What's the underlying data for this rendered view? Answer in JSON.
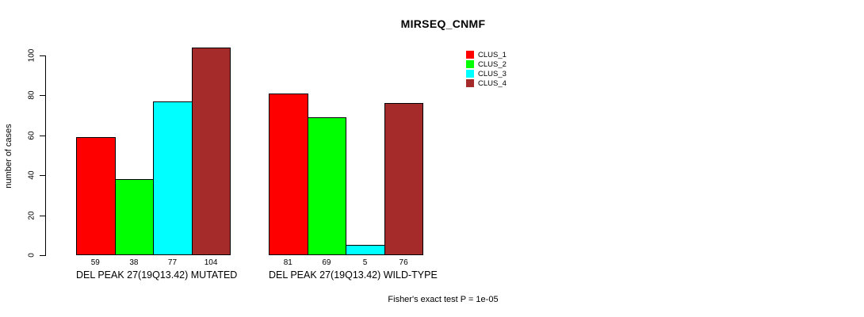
{
  "title": "MIRSEQ_CNMF",
  "chart_data": {
    "type": "bar",
    "title": "MIRSEQ_CNMF",
    "xlabel": "",
    "ylabel": "number of cases",
    "ylim": [
      0,
      100
    ],
    "yticks": [
      0,
      20,
      40,
      60,
      80,
      100
    ],
    "grid": false,
    "legend_position": "top-right",
    "background": "#ffffff",
    "bar_border_color": "#000000",
    "series": [
      {
        "name": "CLUS_1",
        "color": "#FF0000"
      },
      {
        "name": "CLUS_2",
        "color": "#00FF00"
      },
      {
        "name": "CLUS_3",
        "color": "#00FFFF"
      },
      {
        "name": "CLUS_4",
        "color": "#A52A2A"
      }
    ],
    "groups": [
      {
        "label": "DEL PEAK 27(19Q13.42) MUTATED",
        "values": [
          59,
          38,
          77,
          104
        ]
      },
      {
        "label": "DEL PEAK 27(19Q13.42) WILD-TYPE",
        "values": [
          81,
          69,
          5,
          76
        ]
      }
    ],
    "value_labels_shown": true,
    "annotation": "Fisher's exact test P = 1e-05"
  }
}
